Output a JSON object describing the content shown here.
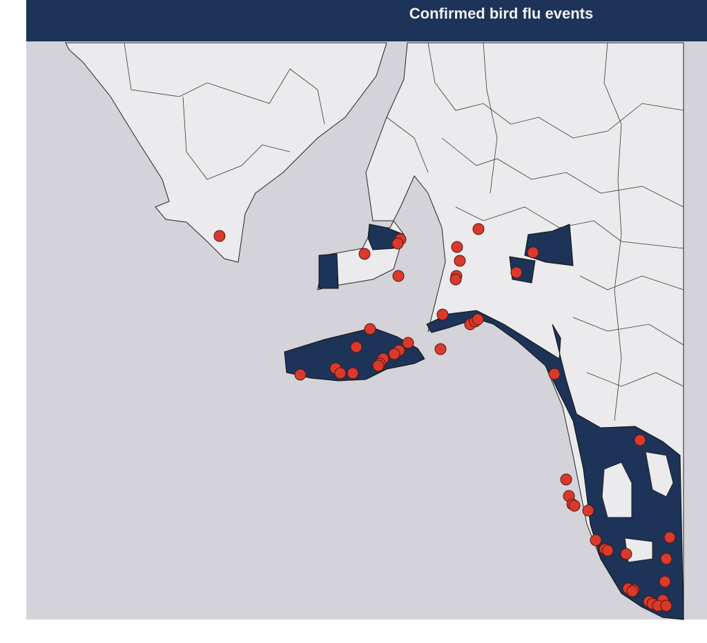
{
  "header": {
    "title": "Confirmed bird flu events"
  }
}
